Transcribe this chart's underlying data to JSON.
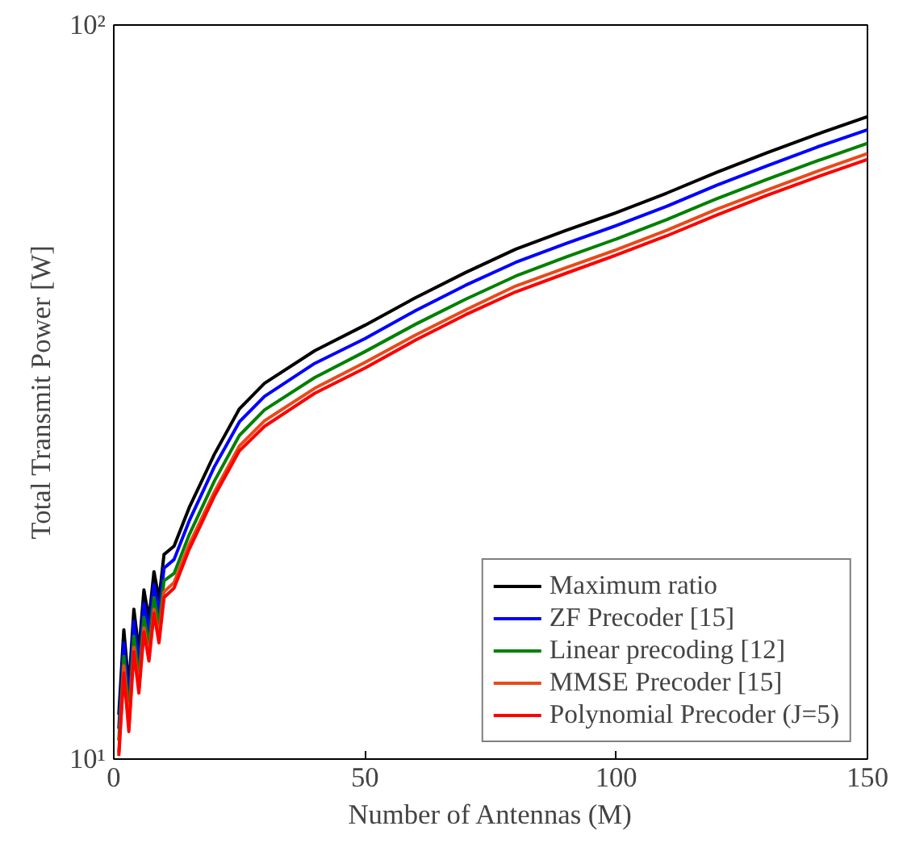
{
  "chart_data": {
    "type": "line",
    "xlabel": "Number of Antennas (M)",
    "ylabel": "Total Transmit Power [W]",
    "x": [
      1,
      2,
      3,
      4,
      5,
      6,
      7,
      8,
      9,
      10,
      12,
      15,
      20,
      25,
      30,
      40,
      50,
      60,
      70,
      80,
      90,
      100,
      110,
      120,
      130,
      140,
      150
    ],
    "series": [
      {
        "name": "Maximum ratio",
        "color": "#000000",
        "values": [
          11.5,
          15,
          12.5,
          16,
          14,
          17,
          15.5,
          18,
          16.5,
          19,
          19.5,
          22,
          26,
          30,
          32.5,
          36,
          39,
          42.5,
          46,
          49.5,
          52.5,
          55.5,
          59,
          63,
          67,
          71,
          75
        ]
      },
      {
        "name": "ZF Precoder [15]",
        "color": "#0000ff",
        "values": [
          11.0,
          14.4,
          12.0,
          15.4,
          13.4,
          16.3,
          14.9,
          17.3,
          15.8,
          18.2,
          18.7,
          21.1,
          25.0,
          28.8,
          31.2,
          34.6,
          37.4,
          40.8,
          44.2,
          47.5,
          50.4,
          53.3,
          56.6,
          60.5,
          64.3,
          68.2,
          72.0
        ]
      },
      {
        "name": "Linear precoding [12]",
        "color": "#008000",
        "values": [
          10.6,
          13.8,
          11.5,
          14.7,
          12.9,
          15.6,
          14.3,
          16.6,
          15.2,
          17.5,
          17.9,
          20.2,
          23.9,
          27.6,
          29.9,
          33.1,
          35.9,
          39.1,
          42.3,
          45.5,
          48.3,
          51.1,
          54.3,
          58.0,
          61.6,
          65.3,
          69.0
        ]
      },
      {
        "name": "MMSE Precoder [15]",
        "color": "#e84a1a",
        "values": [
          10.2,
          13.4,
          11.1,
          14.2,
          12.5,
          15.1,
          13.8,
          16.0,
          14.7,
          16.9,
          17.4,
          19.6,
          23.1,
          26.7,
          28.9,
          32.0,
          34.7,
          37.8,
          40.9,
          44.1,
          46.7,
          49.4,
          52.5,
          56.1,
          59.6,
          63.2,
          66.8
        ]
      },
      {
        "name": "Polynomial Precoder (J=5)",
        "color": "#ff0000",
        "values": [
          10.1,
          13.1,
          10.9,
          14.0,
          12.3,
          14.9,
          13.6,
          15.8,
          14.4,
          16.6,
          17.1,
          19.3,
          22.8,
          26.3,
          28.4,
          31.5,
          34.1,
          37.2,
          40.3,
          43.3,
          45.9,
          48.6,
          51.6,
          55.1,
          58.6,
          62.1,
          65.6
        ]
      }
    ],
    "xlim": [
      0,
      150
    ],
    "xticks": [
      0,
      50,
      100,
      150
    ],
    "ylim": [
      10,
      100
    ],
    "yticks": [
      {
        "value": 10,
        "label": "10¹"
      },
      {
        "value": 100,
        "label": "10²"
      }
    ],
    "log": "y",
    "grid": false,
    "legend": "bottom right",
    "marker": "none",
    "line_style": "solid"
  }
}
